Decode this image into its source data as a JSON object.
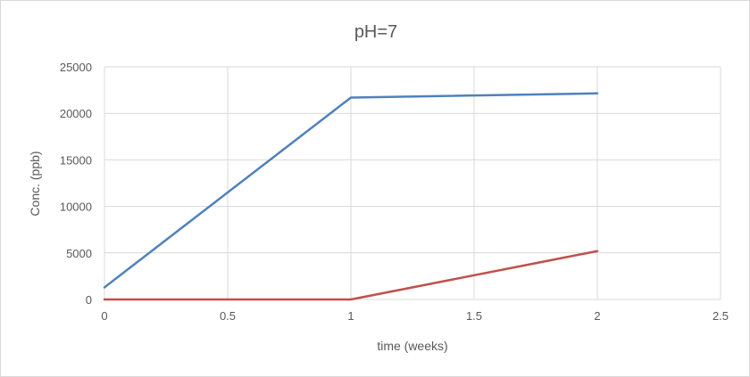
{
  "chart_data": {
    "type": "line",
    "title": "pH=7",
    "xlabel": "time (weeks)",
    "ylabel": "Conc. (ppb)",
    "xlim": [
      0,
      2.5
    ],
    "ylim": [
      0,
      25000
    ],
    "x_ticks": [
      0,
      0.5,
      1,
      1.5,
      2,
      2.5
    ],
    "x_tick_labels": [
      "0",
      "0.5",
      "1",
      "1.5",
      "2",
      "2.5"
    ],
    "y_ticks": [
      0,
      5000,
      10000,
      15000,
      20000,
      25000
    ],
    "y_tick_labels": [
      "0",
      "5000",
      "10000",
      "15000",
      "20000",
      "25000"
    ],
    "grid": true,
    "legend": "none",
    "series": [
      {
        "color": "#4f81bd",
        "x": [
          0,
          1,
          2
        ],
        "y": [
          1300,
          21700,
          22150
        ]
      },
      {
        "color": "#c0504d",
        "x": [
          0,
          1,
          2
        ],
        "y": [
          0,
          0,
          5200
        ]
      }
    ]
  }
}
